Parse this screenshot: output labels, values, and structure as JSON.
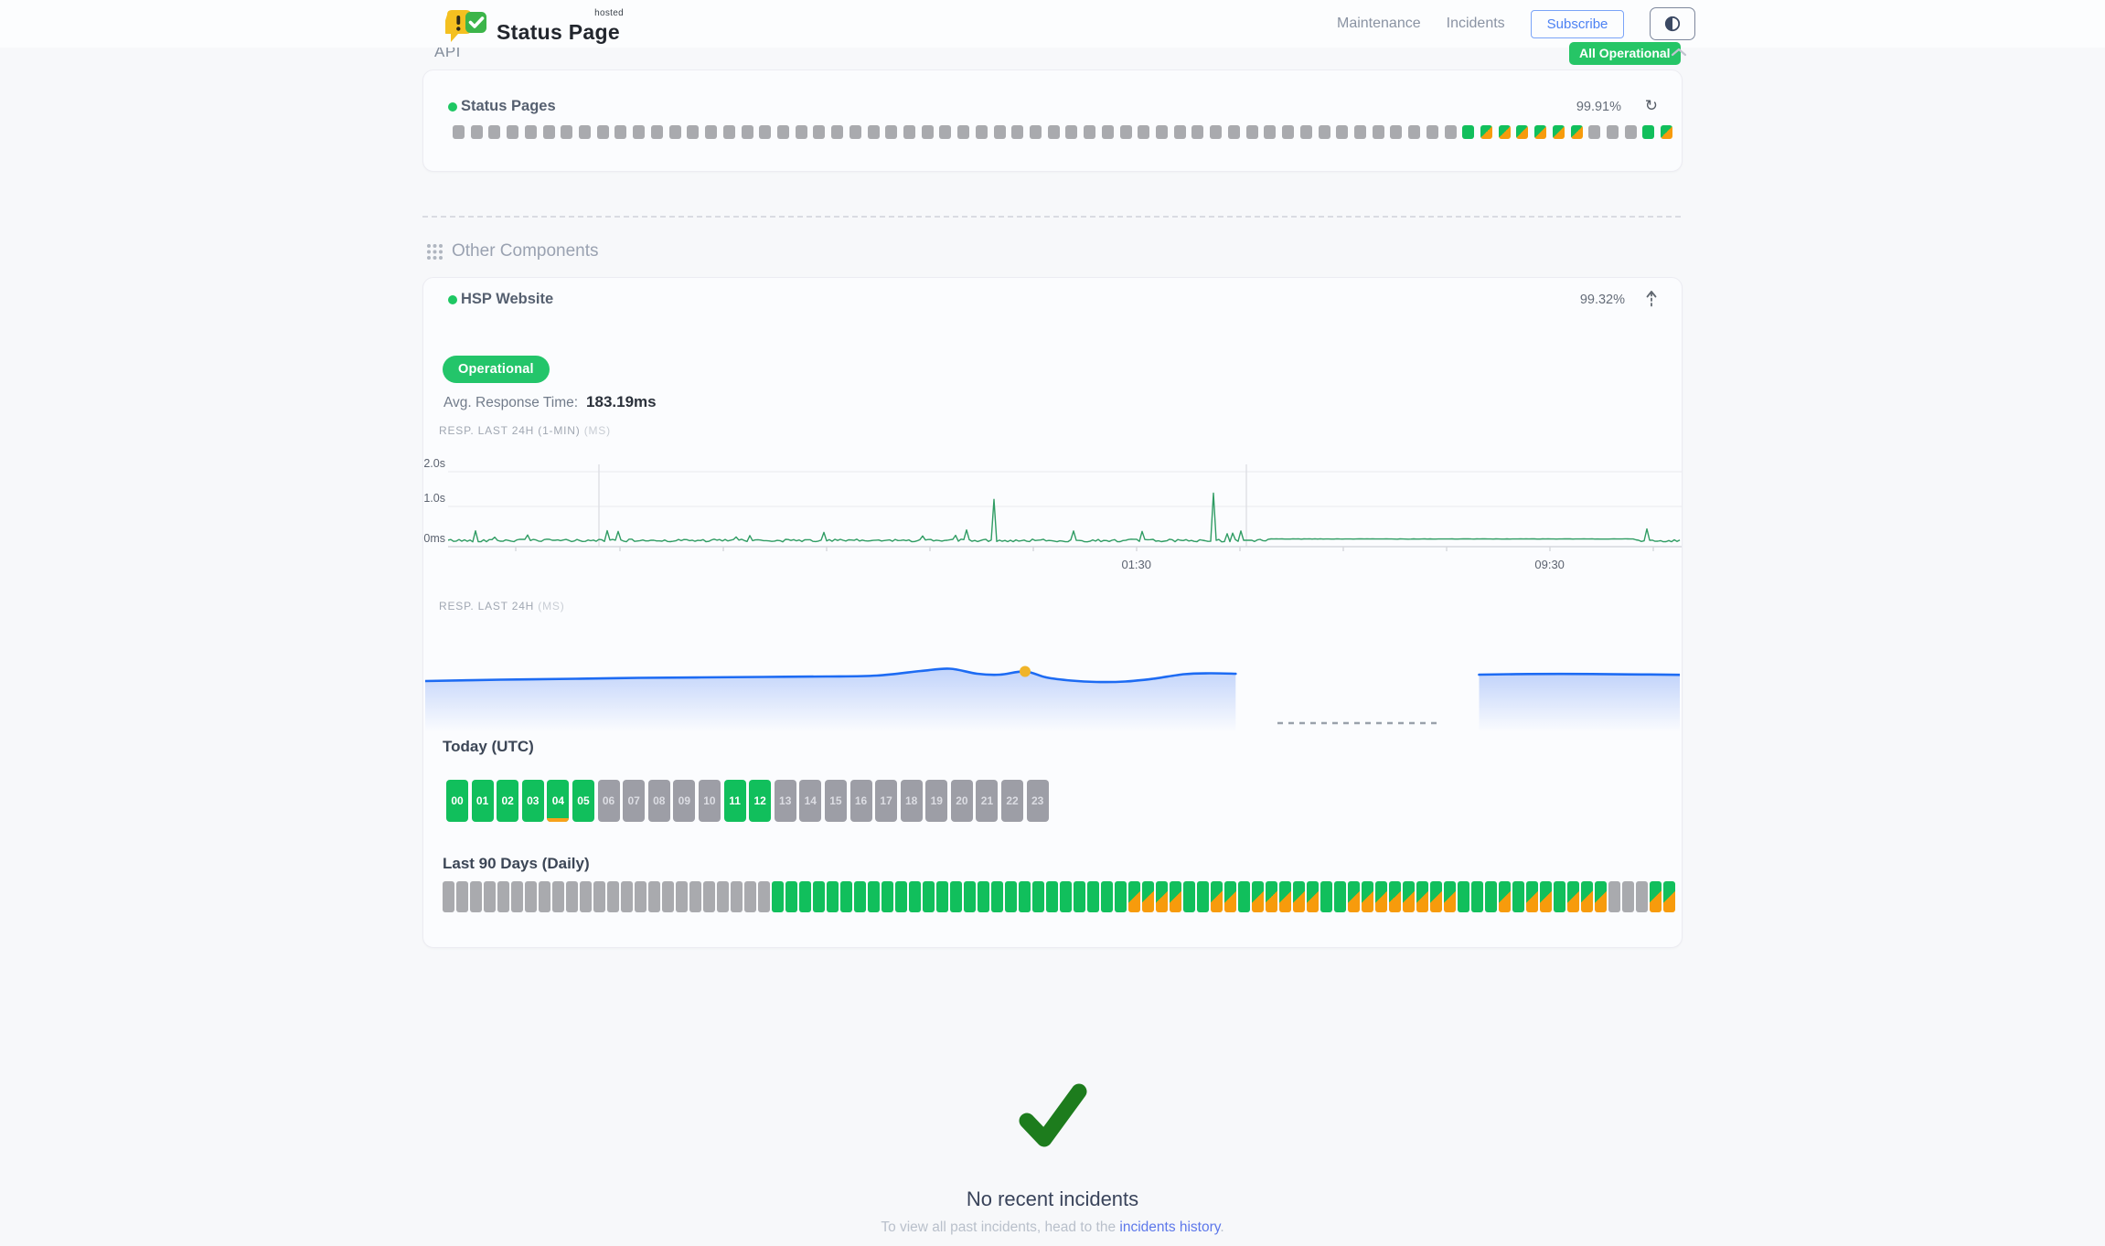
{
  "header": {
    "brand": {
      "title": "Status Page",
      "superscript": "hosted"
    },
    "nav": [
      {
        "label": "Maintenance"
      },
      {
        "label": "Incidents"
      }
    ],
    "subscribe_label": "Subscribe",
    "theme_toggle_icon": "contrast-icon",
    "status_badge": "All Operational"
  },
  "colors": {
    "green": "#11bf5c",
    "orange": "#f79b0c",
    "gray_block": "#a9aaae",
    "badge_green": "#26c566",
    "blue_line": "#1d6bf3",
    "chart_green": "#2f9c63",
    "check_green": "#1d7c1d",
    "link_blue": "#5d78ea",
    "accent_blue": "#4d82f3"
  },
  "api_section": {
    "title": "API",
    "component": {
      "name": "Status Pages",
      "uptime_pct": "99.91%"
    },
    "bars": "nnnnnnnnnnnnnnnnnnnnnnnnnnnnnnnnnnnnnnnnnnnnnnnnnnnnnnnnuddddddnnnud"
  },
  "other_components": {
    "title": "Other Components",
    "component": {
      "name": "HSP Website",
      "uptime_pct": "99.32%",
      "status_label": "Operational",
      "avg_response_label": "Avg. Response Time:",
      "avg_response_value": "183.19ms"
    },
    "resp_1min": {
      "label": "RESP. LAST 24H (1-MIN)",
      "unit": "(MS)",
      "chart": {
        "type": "line",
        "y_ticks": [
          "2.0s",
          "1.0s",
          "0ms"
        ],
        "ymax_ms": 2000,
        "x_ticks": [
          {
            "label": "01:30",
            "f": 0.558
          },
          {
            "label": "09:30",
            "f": 0.893
          }
        ],
        "tick_step_f": 0.0838,
        "vlines_f": [
          0.122,
          0.647
        ],
        "baseline_ms": 155,
        "noise_ms": 70,
        "spike_chance": 0.055,
        "spike_min_ms": 80,
        "spike_max_ms": 340,
        "big_spikes": [
          {
            "f": 0.4435,
            "ms": 1260
          },
          {
            "f": 0.6215,
            "ms": 1430
          }
        ],
        "flat": {
          "from": 0.667,
          "to": 0.961,
          "ms": 205
        }
      }
    },
    "resp_24h": {
      "label": "RESP. LAST 24H",
      "unit": "(MS)",
      "chart": {
        "type": "area",
        "main_points": [
          [
            0,
            44
          ],
          [
            0.06,
            42.5
          ],
          [
            0.12,
            41.5
          ],
          [
            0.17,
            40.5
          ],
          [
            0.22,
            40
          ],
          [
            0.27,
            39.5
          ],
          [
            0.32,
            39
          ],
          [
            0.36,
            38
          ],
          [
            0.395,
            33
          ],
          [
            0.418,
            30.5
          ],
          [
            0.44,
            36
          ],
          [
            0.458,
            37
          ],
          [
            0.478,
            33.5
          ],
          [
            0.495,
            40
          ],
          [
            0.515,
            43.5
          ],
          [
            0.535,
            45
          ],
          [
            0.558,
            44.5
          ],
          [
            0.58,
            41.5
          ],
          [
            0.605,
            36.5
          ],
          [
            0.625,
            35.5
          ],
          [
            0.646,
            36
          ]
        ],
        "second_points": [
          [
            0.84,
            37
          ],
          [
            0.88,
            36.3
          ],
          [
            0.93,
            36.3
          ],
          [
            0.97,
            36.8
          ],
          [
            1,
            37.2
          ]
        ],
        "dashed_gap": {
          "from": 0.679,
          "to": 0.806,
          "y": 90
        },
        "dot": {
          "f": 0.478,
          "y": 33.5
        }
      }
    },
    "today": {
      "title": "Today (UTC)",
      "states": "uuuupunnnnnuunnnnnnnnnnn",
      "hour_labels": [
        "00",
        "01",
        "02",
        "03",
        "04",
        "05",
        "06",
        "07",
        "08",
        "09",
        "10",
        "11",
        "12",
        "13",
        "14",
        "15",
        "16",
        "17",
        "18",
        "19",
        "20",
        "21",
        "22",
        "23"
      ]
    },
    "last90": {
      "title": "Last 90 Days (Daily)",
      "days": "nnnnnnnnnnnnnnnnnnnnnnnnuuuuuuuuuuuuuuuuuuuuuuuuuudddduudduddddduudddddddduuududdudddnnndd"
    }
  },
  "incidents": {
    "title": "No recent incidents",
    "subtitle_prefix": "To view all past incidents, head to the ",
    "link_text": "incidents history",
    "subtitle_suffix": "."
  }
}
